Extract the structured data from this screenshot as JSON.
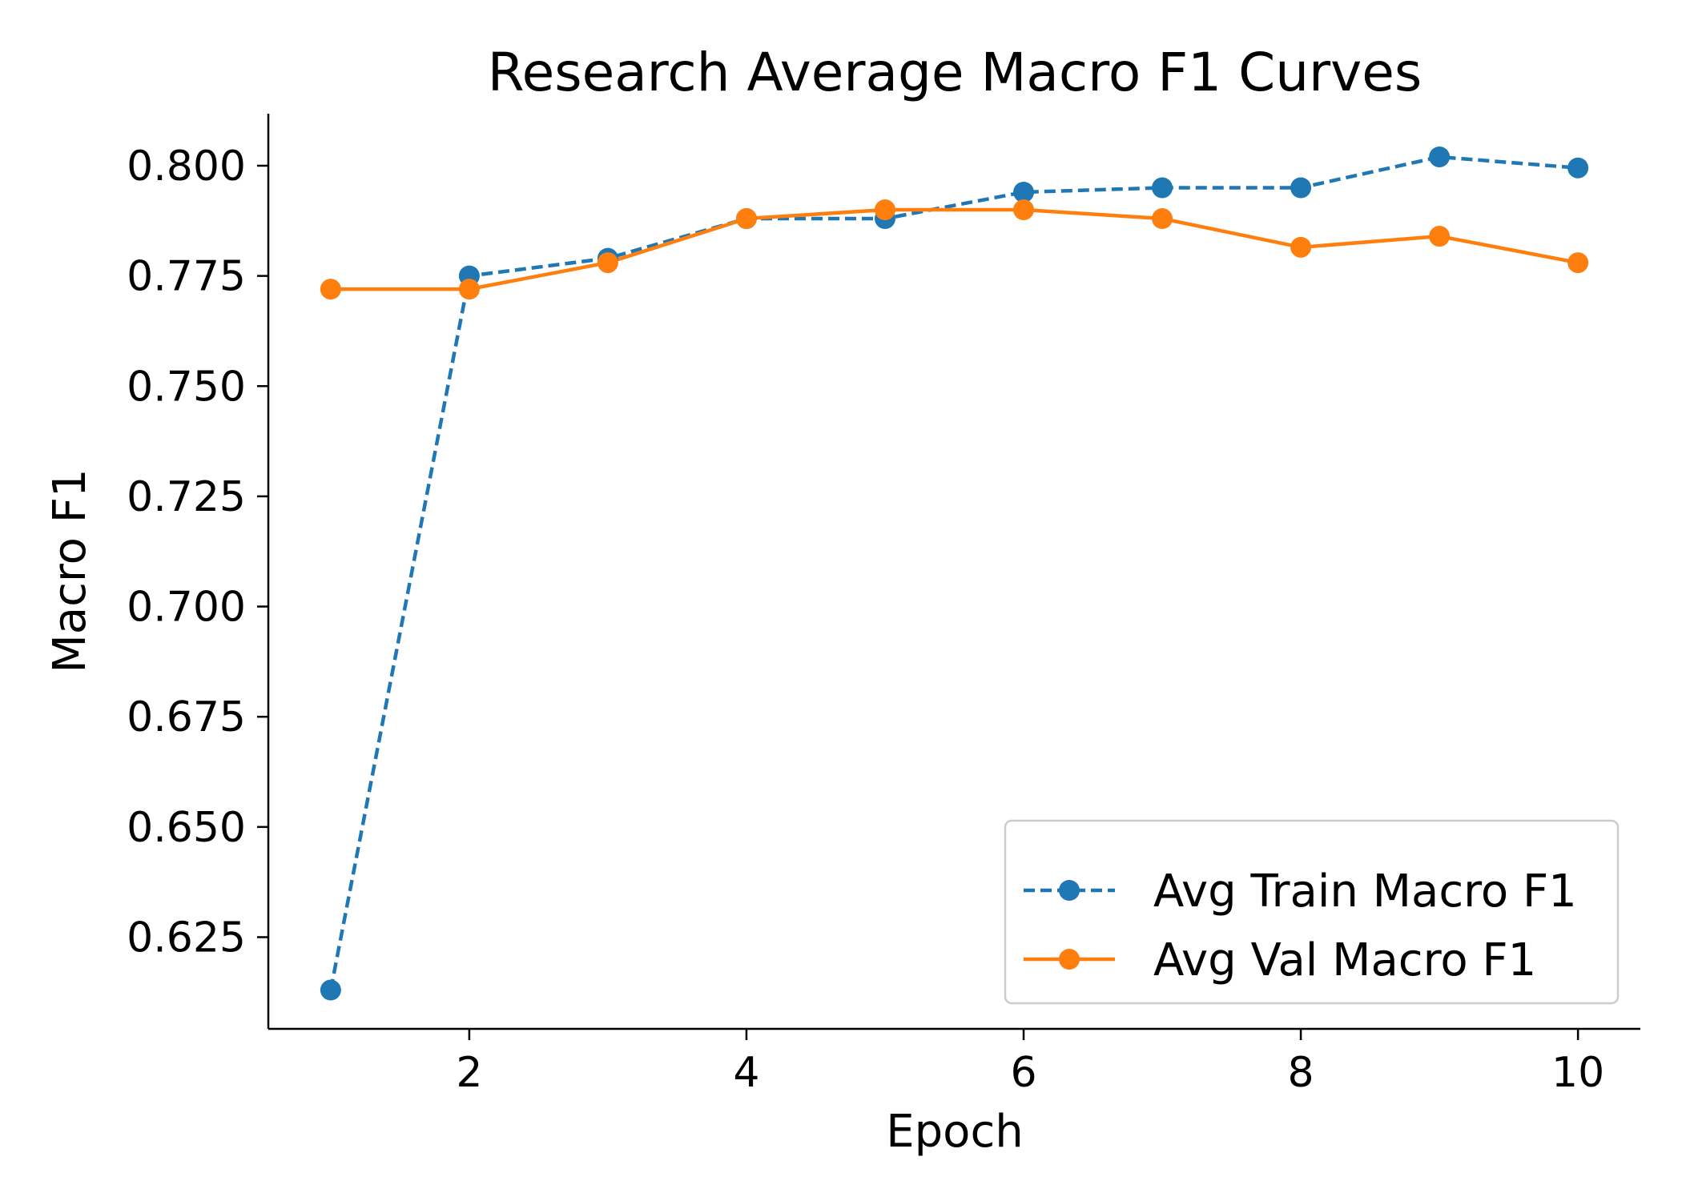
{
  "chart_data": {
    "type": "line",
    "title": "Research Average Macro F1 Curves",
    "xlabel": "Epoch",
    "ylabel": "Macro F1",
    "xlim": [
      0.55,
      10.45
    ],
    "ylim": [
      0.6042,
      0.8118
    ],
    "xticks": [
      2,
      4,
      6,
      8,
      10
    ],
    "yticks": [
      0.625,
      0.65,
      0.675,
      0.7,
      0.725,
      0.75,
      0.775,
      0.8
    ],
    "grid": false,
    "legend_position": "lower right",
    "x": [
      1,
      2,
      3,
      4,
      5,
      6,
      7,
      8,
      9,
      10
    ],
    "series": [
      {
        "name": "Avg Train Macro F1",
        "color": "#1f77b4",
        "linestyle": "dashed",
        "marker": "circle",
        "values": [
          0.613,
          0.775,
          0.779,
          0.788,
          0.788,
          0.794,
          0.795,
          0.795,
          0.802,
          0.7995
        ]
      },
      {
        "name": "Avg Val Macro F1",
        "color": "#ff7f0e",
        "linestyle": "solid",
        "marker": "circle",
        "values": [
          0.772,
          0.772,
          0.778,
          0.788,
          0.79,
          0.79,
          0.788,
          0.7815,
          0.784,
          0.778
        ]
      }
    ]
  }
}
